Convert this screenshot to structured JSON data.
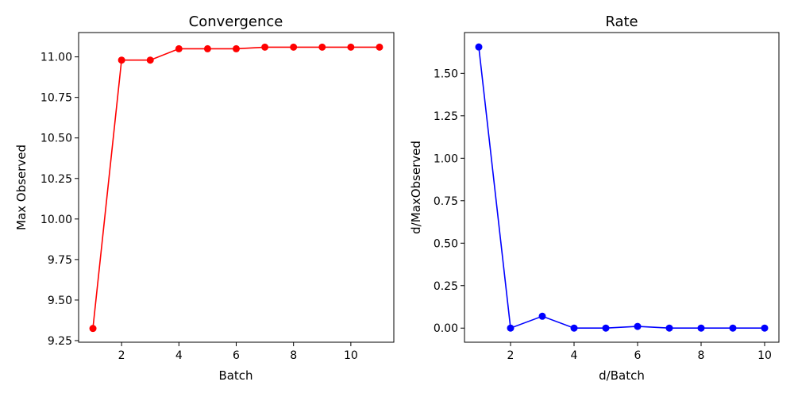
{
  "chart_data": [
    {
      "type": "line",
      "title": "Convergence",
      "xlabel": "Batch",
      "ylabel": "Max Observed",
      "x": [
        1,
        2,
        3,
        4,
        5,
        6,
        7,
        8,
        9,
        10,
        11
      ],
      "series": [
        {
          "values": [
            9.325,
            10.98,
            10.98,
            11.05,
            11.05,
            11.05,
            11.06,
            11.06,
            11.06,
            11.06,
            11.06
          ],
          "color": "#ff0000"
        }
      ],
      "xlim": [
        0.5,
        11.5
      ],
      "ylim": [
        9.24,
        11.15
      ],
      "xticks": [
        2,
        4,
        6,
        8,
        10
      ],
      "yticks": [
        9.25,
        9.5,
        9.75,
        10.0,
        10.25,
        10.5,
        10.75,
        11.0
      ],
      "ytick_labels": [
        "9.25",
        "9.50",
        "9.75",
        "10.00",
        "10.25",
        "10.50",
        "10.75",
        "11.00"
      ],
      "grid": false,
      "marker": "circle"
    },
    {
      "type": "line",
      "title": "Rate",
      "xlabel": "d/Batch",
      "ylabel": "d/MaxObserved",
      "x": [
        1,
        2,
        3,
        4,
        5,
        6,
        7,
        8,
        9,
        10
      ],
      "series": [
        {
          "values": [
            1.655,
            0.0,
            0.07,
            0.0,
            0.0,
            0.01,
            0.0,
            0.0,
            0.0,
            0.0
          ],
          "color": "#0000ff"
        }
      ],
      "xlim": [
        0.55,
        10.45
      ],
      "ylim": [
        -0.083,
        1.74
      ],
      "xticks": [
        2,
        4,
        6,
        8,
        10
      ],
      "yticks": [
        0.0,
        0.25,
        0.5,
        0.75,
        1.0,
        1.25,
        1.5
      ],
      "ytick_labels": [
        "0.00",
        "0.25",
        "0.50",
        "0.75",
        "1.00",
        "1.25",
        "1.50"
      ],
      "grid": false,
      "marker": "circle"
    }
  ]
}
